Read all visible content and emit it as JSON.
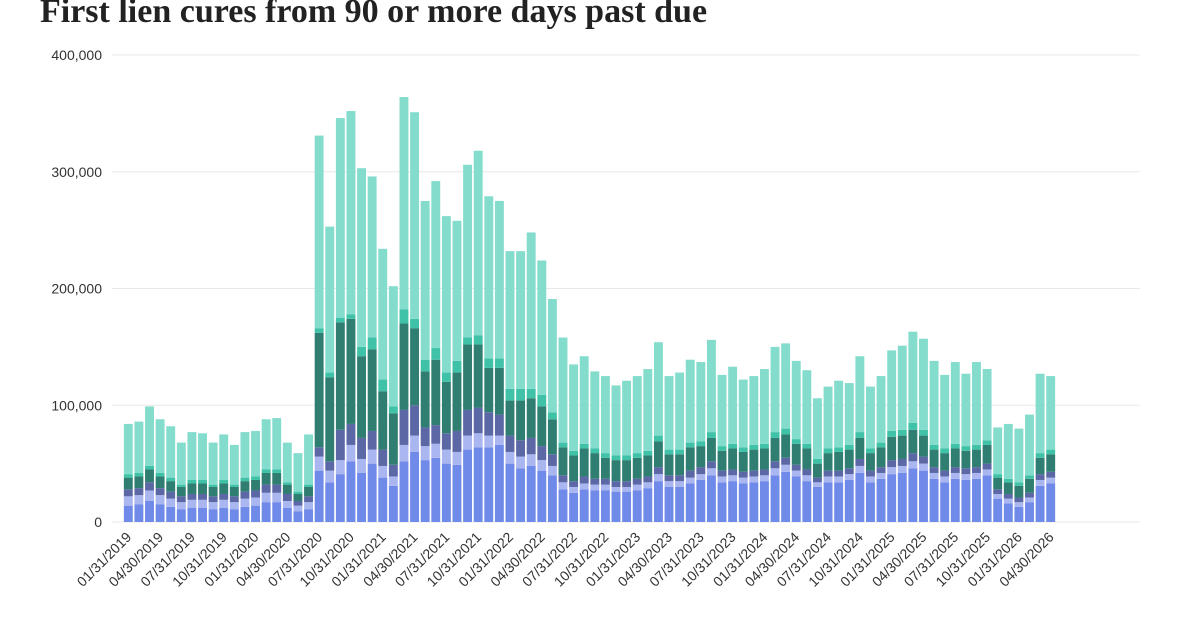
{
  "chart_data": {
    "type": "stacked_bar",
    "title": "First lien cures from 90 or more days past due",
    "categories": [
      "01/31/2019",
      null,
      null,
      "04/30/2019",
      null,
      null,
      "07/31/2019",
      null,
      null,
      "10/31/2019",
      null,
      null,
      "01/31/2020",
      null,
      null,
      "04/30/2020",
      null,
      null,
      "07/31/2020",
      null,
      null,
      "10/31/2020",
      null,
      null,
      "01/31/2021",
      null,
      null,
      "04/30/2021",
      null,
      null,
      "07/31/2021",
      null,
      null,
      "10/31/2021",
      null,
      null,
      "01/31/2022",
      null,
      null,
      "04/30/2022",
      null,
      null,
      "07/31/2022",
      null,
      null,
      "10/31/2022",
      null,
      null,
      "01/31/2023",
      null,
      null,
      "04/30/2023",
      null,
      null,
      "07/31/2023",
      null,
      null,
      "10/31/2023",
      null,
      null,
      "01/31/2024",
      null,
      null,
      "04/30/2024",
      null,
      null,
      "07/31/2024",
      null,
      null,
      "10/31/2024",
      null,
      null,
      "01/31/2025",
      null,
      null,
      "04/30/2025",
      null,
      null,
      "07/31/2025",
      null,
      null,
      "10/31/2025",
      null,
      null,
      "01/31/2026",
      null,
      null,
      "04/30/2026"
    ],
    "series": [
      {
        "color": "#6f8ae8",
        "values": [
          14000,
          15000,
          18000,
          15000,
          13000,
          11000,
          12000,
          12000,
          11000,
          12000,
          11000,
          13000,
          14000,
          17000,
          17000,
          12000,
          9000,
          11000,
          44000,
          34000,
          41000,
          52000,
          42000,
          50000,
          38000,
          31000,
          52000,
          60000,
          53000,
          55000,
          50000,
          49000,
          62000,
          64000,
          64000,
          66000,
          50000,
          46000,
          48000,
          44000,
          40000,
          28000,
          25000,
          28000,
          27000,
          27000,
          26000,
          26000,
          27000,
          29000,
          35000,
          30000,
          30000,
          33000,
          36000,
          40000,
          34000,
          35000,
          33000,
          34000,
          35000,
          40000,
          43000,
          39000,
          35000,
          30000,
          34000,
          34000,
          36000,
          42000,
          34000,
          37000,
          41000,
          42000,
          46000,
          44000,
          37000,
          34000,
          37000,
          36000,
          37000,
          40000,
          20000,
          16000,
          13000,
          17000,
          31000,
          33000
        ]
      },
      {
        "color": "#aab6f0",
        "values": [
          8000,
          8000,
          9000,
          8000,
          7000,
          6000,
          7000,
          7000,
          6000,
          7000,
          6000,
          7000,
          7000,
          8000,
          8000,
          6000,
          5000,
          6000,
          12000,
          10000,
          12000,
          14000,
          12000,
          12000,
          10000,
          8000,
          14000,
          14000,
          12000,
          12000,
          12000,
          11000,
          12000,
          12000,
          10000,
          8000,
          10000,
          10000,
          10000,
          9000,
          8000,
          6000,
          5000,
          5000,
          5000,
          5000,
          4000,
          4000,
          5000,
          5000,
          6000,
          5000,
          5000,
          5000,
          5000,
          6000,
          5000,
          5000,
          5000,
          5000,
          5000,
          6000,
          6000,
          5000,
          5000,
          4000,
          5000,
          5000,
          5000,
          6000,
          5000,
          5000,
          6000,
          6000,
          6000,
          6000,
          5000,
          5000,
          5000,
          5000,
          5000,
          5000,
          4000,
          4000,
          4000,
          4000,
          5000,
          5000
        ]
      },
      {
        "color": "#5c68a6",
        "values": [
          6000,
          6000,
          7000,
          6000,
          6000,
          5000,
          5000,
          5000,
          5000,
          5000,
          5000,
          6000,
          6000,
          7000,
          7000,
          6000,
          4000,
          5000,
          8000,
          8000,
          26000,
          18000,
          18000,
          16000,
          14000,
          10000,
          30000,
          26000,
          16000,
          16000,
          14000,
          18000,
          22000,
          22000,
          20000,
          18000,
          14000,
          14000,
          14000,
          12000,
          10000,
          6000,
          5000,
          6000,
          5000,
          5000,
          5000,
          5000,
          5000,
          5000,
          6000,
          5000,
          5000,
          6000,
          6000,
          6000,
          5000,
          5000,
          5000,
          5000,
          5000,
          6000,
          6000,
          5000,
          5000,
          4000,
          5000,
          5000,
          5000,
          6000,
          5000,
          5000,
          6000,
          6000,
          7000,
          6000,
          5000,
          5000,
          5000,
          5000,
          5000,
          5000,
          4000,
          4000,
          4000,
          4000,
          5000,
          5000
        ]
      },
      {
        "color": "#2f7e71",
        "values": [
          10000,
          10000,
          11000,
          10000,
          9000,
          8000,
          9000,
          9000,
          8000,
          9000,
          8000,
          9000,
          9000,
          10000,
          10000,
          8000,
          6000,
          8000,
          98000,
          72000,
          92000,
          90000,
          70000,
          70000,
          50000,
          44000,
          74000,
          66000,
          48000,
          56000,
          44000,
          50000,
          56000,
          54000,
          38000,
          40000,
          30000,
          34000,
          34000,
          34000,
          30000,
          24000,
          22000,
          24000,
          22000,
          18000,
          18000,
          18000,
          18000,
          18000,
          22000,
          18000,
          18000,
          20000,
          18000,
          20000,
          17000,
          18000,
          17000,
          18000,
          18000,
          20000,
          20000,
          18000,
          18000,
          12000,
          15000,
          16000,
          16000,
          18000,
          15000,
          17000,
          20000,
          20000,
          20000,
          18000,
          15000,
          15000,
          16000,
          15000,
          15000,
          16000,
          10000,
          10000,
          10000,
          12000,
          14000,
          15000
        ]
      },
      {
        "color": "#3fc2a7",
        "values": [
          3000,
          3000,
          3000,
          3000,
          3000,
          2000,
          3000,
          3000,
          2000,
          3000,
          2000,
          3000,
          3000,
          3000,
          3000,
          2000,
          2000,
          2000,
          4000,
          4000,
          4000,
          4000,
          8000,
          10000,
          10000,
          6000,
          12000,
          8000,
          10000,
          10000,
          8000,
          10000,
          6000,
          8000,
          8000,
          8000,
          10000,
          10000,
          8000,
          10000,
          6000,
          4000,
          4000,
          4000,
          4000,
          4000,
          4000,
          4000,
          4000,
          4000,
          5000,
          4000,
          4000,
          4000,
          4000,
          5000,
          4000,
          4000,
          4000,
          4000,
          4000,
          5000,
          5000,
          4000,
          4000,
          4000,
          4000,
          4000,
          4000,
          5000,
          4000,
          4000,
          5000,
          5000,
          6000,
          5000,
          4000,
          4000,
          4000,
          4000,
          4000,
          4000,
          3000,
          3000,
          3000,
          3000,
          4000,
          4000
        ]
      },
      {
        "color": "#84dccd",
        "values": [
          43000,
          44000,
          51000,
          46000,
          44000,
          36000,
          41000,
          40000,
          36000,
          39000,
          34000,
          39000,
          39000,
          43000,
          44000,
          34000,
          33000,
          43000,
          165000,
          125000,
          171000,
          174000,
          153000,
          138000,
          112000,
          103000,
          182000,
          177000,
          136000,
          143000,
          134000,
          120000,
          148000,
          158000,
          139000,
          135000,
          118000,
          118000,
          134000,
          115000,
          97000,
          90000,
          74000,
          75000,
          66000,
          66000,
          60000,
          64000,
          66000,
          70000,
          80000,
          63000,
          66000,
          71000,
          68000,
          79000,
          61000,
          66000,
          58000,
          59000,
          64000,
          73000,
          73000,
          67000,
          63000,
          52000,
          53000,
          57000,
          53000,
          65000,
          53000,
          57000,
          69000,
          72000,
          78000,
          78000,
          72000,
          63000,
          70000,
          62000,
          71000,
          61000,
          40000,
          47000,
          46000,
          52000,
          68000,
          63000
        ]
      }
    ],
    "ylim": [
      0,
      400000
    ],
    "yticks": [
      0,
      {
        "value": 100000,
        "label": "100,000"
      },
      {
        "value": 200000,
        "label": "200,000"
      },
      {
        "value": 300000,
        "label": "300,000"
      },
      {
        "value": 400000,
        "label": "400,000"
      }
    ],
    "grid": true
  }
}
